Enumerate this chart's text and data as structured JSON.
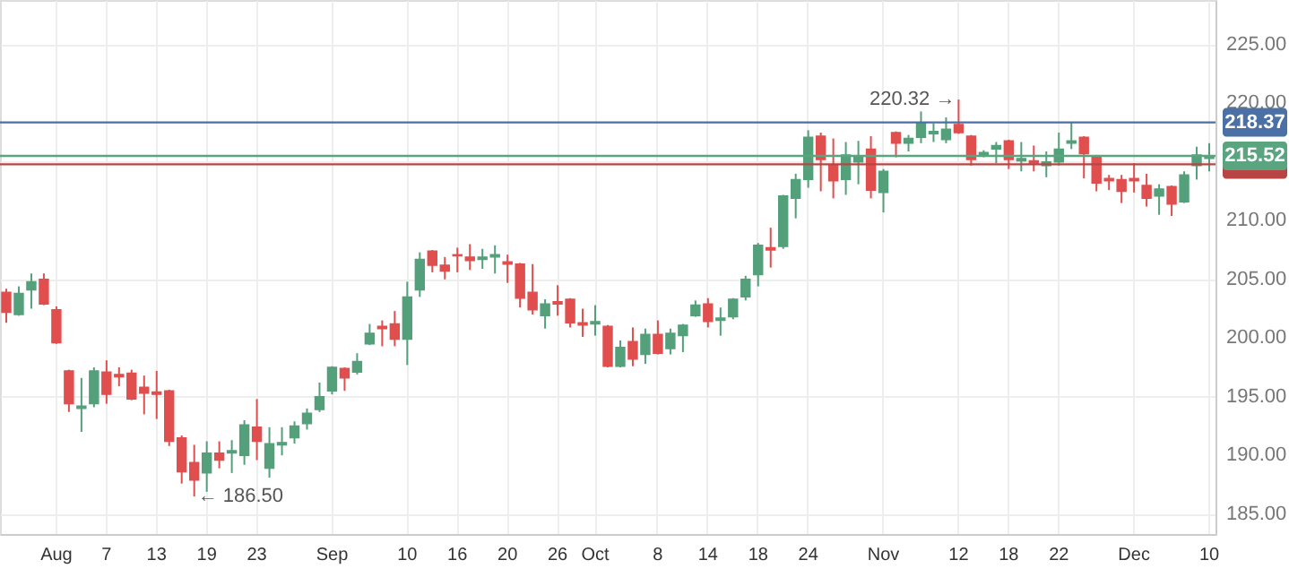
{
  "chart_data": {
    "type": "candlestick",
    "categories": [
      null,
      null,
      null,
      null,
      "Aug",
      null,
      null,
      null,
      "7",
      null,
      null,
      null,
      "13",
      null,
      null,
      null,
      "19",
      null,
      null,
      null,
      "23",
      null,
      null,
      null,
      null,
      null,
      "Sep",
      null,
      null,
      null,
      null,
      null,
      "10",
      null,
      null,
      null,
      "16",
      null,
      null,
      null,
      "20",
      null,
      null,
      null,
      "26",
      null,
      null,
      "Oct",
      null,
      null,
      null,
      null,
      "8",
      null,
      null,
      null,
      "14",
      null,
      null,
      null,
      "18",
      null,
      null,
      null,
      "24",
      null,
      null,
      null,
      null,
      null,
      "Nov",
      null,
      null,
      null,
      null,
      null,
      "12",
      null,
      null,
      null,
      "18",
      null,
      null,
      null,
      "22",
      null,
      null,
      null,
      null,
      null,
      "Dec",
      null,
      null,
      null,
      null,
      null,
      "10"
    ],
    "ohlc": [
      [
        203.9,
        204.2,
        201.3,
        202.2
      ],
      [
        202.0,
        204.4,
        201.9,
        203.8
      ],
      [
        204.1,
        205.5,
        202.5,
        204.8
      ],
      [
        205.0,
        205.5,
        202.8,
        202.9
      ],
      [
        202.4,
        202.7,
        199.5,
        199.6
      ],
      [
        197.2,
        197.3,
        193.7,
        194.4
      ],
      [
        194.0,
        196.6,
        192.0,
        194.2
      ],
      [
        194.4,
        197.5,
        194.1,
        197.2
      ],
      [
        197.1,
        198.1,
        194.4,
        195.2
      ],
      [
        196.9,
        197.5,
        195.9,
        196.7
      ],
      [
        197.0,
        197.3,
        194.7,
        194.8
      ],
      [
        195.8,
        196.8,
        193.5,
        195.3
      ],
      [
        195.4,
        197.2,
        193.1,
        195.2
      ],
      [
        195.5,
        195.6,
        190.8,
        191.2
      ],
      [
        191.5,
        191.7,
        187.6,
        188.6
      ],
      [
        189.4,
        190.9,
        186.5,
        187.9
      ],
      [
        188.5,
        191.2,
        186.9,
        190.2
      ],
      [
        190.2,
        191.2,
        188.9,
        189.6
      ],
      [
        190.2,
        191.3,
        188.5,
        190.4
      ],
      [
        190.0,
        193.0,
        189.2,
        192.6
      ],
      [
        192.4,
        194.8,
        189.6,
        191.2
      ],
      [
        188.9,
        192.4,
        188.1,
        191.0
      ],
      [
        190.9,
        192.4,
        190.0,
        191.1
      ],
      [
        191.5,
        192.9,
        191.0,
        192.5
      ],
      [
        192.7,
        194.0,
        192.2,
        193.6
      ],
      [
        193.9,
        196.2,
        193.7,
        195.0
      ],
      [
        195.5,
        197.6,
        195.2,
        197.5
      ],
      [
        197.4,
        197.5,
        195.5,
        196.6
      ],
      [
        197.1,
        198.7,
        196.9,
        198.0
      ],
      [
        199.5,
        201.2,
        199.4,
        200.4
      ],
      [
        201.0,
        201.5,
        199.3,
        200.8
      ],
      [
        201.2,
        202.3,
        199.3,
        199.9
      ],
      [
        199.9,
        204.8,
        197.7,
        203.5
      ],
      [
        204.1,
        207.3,
        203.5,
        206.7
      ],
      [
        207.4,
        207.5,
        205.6,
        206.2
      ],
      [
        206.2,
        206.9,
        205.0,
        205.7
      ],
      [
        207.1,
        207.7,
        205.6,
        207.0
      ],
      [
        206.9,
        208.0,
        205.8,
        206.6
      ],
      [
        206.7,
        207.6,
        205.9,
        206.9
      ],
      [
        206.9,
        207.9,
        205.5,
        207.1
      ],
      [
        206.5,
        207.1,
        204.7,
        206.3
      ],
      [
        206.3,
        206.4,
        202.6,
        203.4
      ],
      [
        203.9,
        206.3,
        202.0,
        202.4
      ],
      [
        201.9,
        203.3,
        200.8,
        202.9
      ],
      [
        203.1,
        204.5,
        201.9,
        202.9
      ],
      [
        203.3,
        203.4,
        200.9,
        201.3
      ],
      [
        201.3,
        202.5,
        200.1,
        201.1
      ],
      [
        201.2,
        202.8,
        200.2,
        201.4
      ],
      [
        201.0,
        201.1,
        197.5,
        197.6
      ],
      [
        197.6,
        199.8,
        197.5,
        199.2
      ],
      [
        199.7,
        200.9,
        197.6,
        198.2
      ],
      [
        198.6,
        200.8,
        197.8,
        200.3
      ],
      [
        200.3,
        201.5,
        198.6,
        198.7
      ],
      [
        199.1,
        200.8,
        198.6,
        200.4
      ],
      [
        200.2,
        201.2,
        198.8,
        201.1
      ],
      [
        201.9,
        203.2,
        201.8,
        202.8
      ],
      [
        202.9,
        203.4,
        200.9,
        201.4
      ],
      [
        201.5,
        202.6,
        200.2,
        201.7
      ],
      [
        201.8,
        203.4,
        201.6,
        203.3
      ],
      [
        203.5,
        205.3,
        203.2,
        205.0
      ],
      [
        205.4,
        208.1,
        204.4,
        207.9
      ],
      [
        207.7,
        209.4,
        206.0,
        207.5
      ],
      [
        207.8,
        212.2,
        207.6,
        212.1
      ],
      [
        211.9,
        214.0,
        210.2,
        213.5
      ],
      [
        213.5,
        217.7,
        212.8,
        217.1
      ],
      [
        217.2,
        217.5,
        212.5,
        215.2
      ],
      [
        214.7,
        217.0,
        211.9,
        213.4
      ],
      [
        213.5,
        216.7,
        212.2,
        215.6
      ],
      [
        215.0,
        216.8,
        213.1,
        215.4
      ],
      [
        216.1,
        217.2,
        211.9,
        212.6
      ],
      [
        212.4,
        214.4,
        210.7,
        214.2
      ],
      [
        217.5,
        217.6,
        215.4,
        216.6
      ],
      [
        216.6,
        217.3,
        215.9,
        217.0
      ],
      [
        217.1,
        219.3,
        216.6,
        218.3
      ],
      [
        217.4,
        218.3,
        216.7,
        217.6
      ],
      [
        216.9,
        218.8,
        216.6,
        217.8
      ],
      [
        218.2,
        220.32,
        217.4,
        217.5
      ],
      [
        217.2,
        217.3,
        214.7,
        215.2
      ],
      [
        215.6,
        216.0,
        215.4,
        215.8
      ],
      [
        216.1,
        216.7,
        214.9,
        216.4
      ],
      [
        216.8,
        216.9,
        214.4,
        215.2
      ],
      [
        215.1,
        216.7,
        214.2,
        215.3
      ],
      [
        215.1,
        216.4,
        214.2,
        214.9
      ],
      [
        214.7,
        215.9,
        213.7,
        215.0
      ],
      [
        215.0,
        217.5,
        214.7,
        216.1
      ],
      [
        216.6,
        218.4,
        216.1,
        216.8
      ],
      [
        217.1,
        217.2,
        213.6,
        215.7
      ],
      [
        215.5,
        215.6,
        212.5,
        213.2
      ],
      [
        213.6,
        213.9,
        212.6,
        213.4
      ],
      [
        213.5,
        213.9,
        211.5,
        212.5
      ],
      [
        213.6,
        214.9,
        212.4,
        213.4
      ],
      [
        213.0,
        214.0,
        211.2,
        211.9
      ],
      [
        212.1,
        213.1,
        210.5,
        212.7
      ],
      [
        212.9,
        213.0,
        210.4,
        211.4
      ],
      [
        211.6,
        214.2,
        211.5,
        213.9
      ],
      [
        214.7,
        216.3,
        213.5,
        215.6
      ],
      [
        215.3,
        216.6,
        214.2,
        215.52
      ]
    ],
    "colors": [
      "#e04e4e",
      "#53a07b",
      "#53a07b",
      "#e04e4e",
      "#e04e4e",
      "#e04e4e",
      "#53a07b",
      "#53a07b",
      "#e04e4e",
      "#e04e4e",
      "#e04e4e",
      "#e04e4e",
      "#e04e4e",
      "#e04e4e",
      "#e04e4e",
      "#e04e4e",
      "#53a07b",
      "#e04e4e",
      "#53a07b",
      "#53a07b",
      "#e04e4e",
      "#53a07b",
      "#53a07b",
      "#53a07b",
      "#53a07b",
      "#53a07b",
      "#53a07b",
      "#e04e4e",
      "#53a07b",
      "#53a07b",
      "#e04e4e",
      "#e04e4e",
      "#53a07b",
      "#53a07b",
      "#e04e4e",
      "#e04e4e",
      "#e04e4e",
      "#e04e4e",
      "#53a07b",
      "#53a07b",
      "#e04e4e",
      "#e04e4e",
      "#e04e4e",
      "#53a07b",
      "#e04e4e",
      "#e04e4e",
      "#e04e4e",
      "#53a07b",
      "#e04e4e",
      "#53a07b",
      "#e04e4e",
      "#53a07b",
      "#e04e4e",
      "#53a07b",
      "#53a07b",
      "#53a07b",
      "#e04e4e",
      "#53a07b",
      "#53a07b",
      "#53a07b",
      "#53a07b",
      "#e04e4e",
      "#53a07b",
      "#53a07b",
      "#53a07b",
      "#e04e4e",
      "#e04e4e",
      "#53a07b",
      "#53a07b",
      "#e04e4e",
      "#53a07b",
      "#e04e4e",
      "#53a07b",
      "#53a07b",
      "#53a07b",
      "#53a07b",
      "#e04e4e",
      "#e04e4e",
      "#53a07b",
      "#53a07b",
      "#e04e4e",
      "#53a07b",
      "#e04e4e",
      "#53a07b",
      "#53a07b",
      "#53a07b",
      "#e04e4e",
      "#e04e4e",
      "#e04e4e",
      "#e04e4e",
      "#e04e4e",
      "#e04e4e",
      "#53a07b",
      "#e04e4e",
      "#53a07b",
      "#53a07b",
      "#53a07b"
    ],
    "ylim": [
      183.3,
      228.8
    ],
    "yticks": [
      {
        "value": 185,
        "label": "185.00"
      },
      {
        "value": 190,
        "label": "190.00"
      },
      {
        "value": 195,
        "label": "195.00"
      },
      {
        "value": 200,
        "label": "200.00"
      },
      {
        "value": 205,
        "label": "205.00"
      },
      {
        "value": 210,
        "label": "210.00"
      },
      {
        "value": 215,
        "label": null
      },
      {
        "value": 220,
        "label": "220.00"
      },
      {
        "value": 225,
        "label": "225.00"
      }
    ],
    "ref_lines": [
      {
        "axis": "y",
        "value": 218.37,
        "label": "218.37",
        "color": "#4a70a5"
      },
      {
        "axis": "y",
        "value": 214.8,
        "label": null,
        "color": "#b84444"
      },
      {
        "axis": "y",
        "value": 215.52,
        "label": "215.52",
        "color": "#5aa57f"
      }
    ],
    "annotations": [
      "220.32 →",
      "← 186.50"
    ],
    "grid": true
  }
}
